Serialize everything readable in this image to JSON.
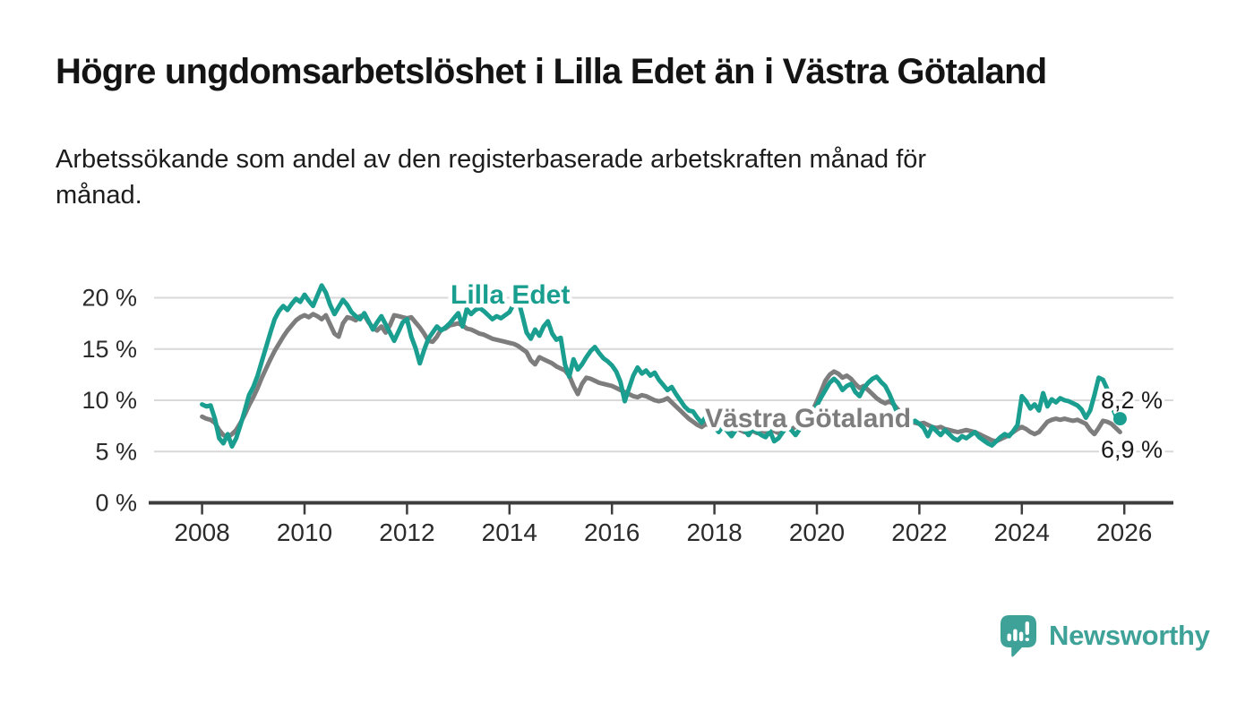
{
  "header": {
    "title": "Högre ungdomsarbetslöshet i Lilla Edet än i Västra Götaland",
    "subtitle": "Arbetssökande som andel av den registerbaserade arbetskraften månad för\nmånad."
  },
  "branding": {
    "logo_text": "Newsworthy",
    "logo_icon": "newsworthy-bubble-bar-chart-icon",
    "logo_color": "#3fa298"
  },
  "chart_data": {
    "type": "line",
    "title": "Högre ungdomsarbetslöshet i Lilla Edet än i Västra Götaland",
    "subtitle": "Arbetssökande som andel av den registerbaserade arbetskraften månad för månad.",
    "xlabel": "",
    "ylabel": "",
    "unit": "%",
    "frequency": "monthly",
    "x_start": "2008-01",
    "x_end": "2025-12",
    "ylim": [
      0,
      22.5
    ],
    "grid": "horizontal",
    "legend_position": "inline-labels",
    "colors": {
      "axis": "#3d3d3d",
      "gridline": "#d9d9d9",
      "tick_text": "#2b2b2b",
      "annotation_text": "#1a1a1a"
    },
    "y_ticks": [
      0,
      5,
      10,
      15,
      20
    ],
    "y_tick_labels": [
      "0 %",
      "5 %",
      "10 %",
      "15 %",
      "20 %"
    ],
    "x_ticks": [
      2008,
      2010,
      2012,
      2014,
      2016,
      2018,
      2020,
      2022,
      2024,
      2026
    ],
    "x_tick_labels": [
      "2008",
      "2010",
      "2012",
      "2014",
      "2016",
      "2018",
      "2020",
      "2022",
      "2024",
      "2026"
    ],
    "series": [
      {
        "name": "Lilla Edet",
        "slug": "lilla-edet",
        "color": "#1a9e90",
        "end_label": "8,2 %",
        "end_value": 8.2,
        "values": [
          9.6,
          9.4,
          9.5,
          8.2,
          6.3,
          5.8,
          6.7,
          5.5,
          6.3,
          7.6,
          9.0,
          10.5,
          11.3,
          12.4,
          13.8,
          15.2,
          16.6,
          17.9,
          18.7,
          19.2,
          18.8,
          19.4,
          19.9,
          19.6,
          20.3,
          19.7,
          19.2,
          20.2,
          21.2,
          20.5,
          19.3,
          18.4,
          19.1,
          19.8,
          19.3,
          18.6,
          18.2,
          17.9,
          18.5,
          17.7,
          16.9,
          17.6,
          18.2,
          17.4,
          16.6,
          15.8,
          16.7,
          17.6,
          17.9,
          16.2,
          15.1,
          13.6,
          14.9,
          16.0,
          16.6,
          17.2,
          16.8,
          17.1,
          17.5,
          18.0,
          18.5,
          17.2,
          18.9,
          18.4,
          18.8,
          19.0,
          18.7,
          18.3,
          17.9,
          18.2,
          18.0,
          18.3,
          18.6,
          19.4,
          19.9,
          18.3,
          16.6,
          16.0,
          16.9,
          16.3,
          17.2,
          17.7,
          16.5,
          15.9,
          16.1,
          13.5,
          12.3,
          14.0,
          13.0,
          13.5,
          14.2,
          14.8,
          15.2,
          14.6,
          14.1,
          13.8,
          13.4,
          12.8,
          11.8,
          9.9,
          11.2,
          12.4,
          13.2,
          12.6,
          12.9,
          12.4,
          12.7,
          12.0,
          11.5,
          11.0,
          11.3,
          10.6,
          10.0,
          9.4,
          9.0,
          8.9,
          8.3,
          7.8,
          8.4,
          7.7,
          7.4,
          6.9,
          7.5,
          7.0,
          6.5,
          7.1,
          7.6,
          7.1,
          6.6,
          7.2,
          6.9,
          6.6,
          6.4,
          7.0,
          6.0,
          6.3,
          6.9,
          7.4,
          7.1,
          6.6,
          7.2,
          7.8,
          8.2,
          8.7,
          9.5,
          10.3,
          11.0,
          11.7,
          12.1,
          11.7,
          11.0,
          11.4,
          11.6,
          10.8,
          10.4,
          11.2,
          11.7,
          12.1,
          12.3,
          11.8,
          11.4,
          10.6,
          9.6,
          8.6,
          8.1,
          8.0,
          7.8,
          8.0,
          7.7,
          7.3,
          6.5,
          7.4,
          7.0,
          6.6,
          7.1,
          6.7,
          6.3,
          6.1,
          6.5,
          6.3,
          6.6,
          6.9,
          6.4,
          6.1,
          5.8,
          5.6,
          6.0,
          6.4,
          6.7,
          6.5,
          7.0,
          7.6,
          10.4,
          9.9,
          9.2,
          9.6,
          9.0,
          10.7,
          9.4,
          10.1,
          9.8,
          10.2,
          10.0,
          9.9,
          9.7,
          9.5,
          9.1,
          8.3,
          9.0,
          10.5,
          12.2,
          12.0,
          11.1,
          9.5,
          8.5,
          8.2
        ]
      },
      {
        "name": "Västra Götaland",
        "slug": "vastra-gotaland",
        "color": "#7d7d7d",
        "end_label": "6,9 %",
        "end_value": 6.9,
        "values": [
          8.4,
          8.2,
          8.1,
          7.8,
          7.1,
          6.6,
          6.4,
          6.7,
          7.1,
          7.8,
          8.6,
          9.5,
          10.3,
          11.2,
          12.2,
          13.1,
          14.0,
          14.8,
          15.5,
          16.2,
          16.8,
          17.3,
          17.8,
          18.1,
          18.3,
          18.1,
          18.4,
          18.2,
          17.9,
          18.3,
          17.4,
          16.5,
          16.2,
          17.5,
          18.1,
          18.0,
          17.8,
          18.2,
          18.3,
          17.6,
          17.1,
          16.8,
          17.2,
          16.6,
          17.3,
          18.3,
          18.2,
          18.1,
          18.0,
          18.1,
          17.6,
          17.1,
          16.5,
          15.8,
          15.7,
          16.2,
          16.9,
          17.0,
          17.3,
          17.4,
          17.5,
          17.3,
          17.0,
          16.9,
          16.7,
          16.5,
          16.4,
          16.2,
          16.0,
          15.9,
          15.8,
          15.7,
          15.6,
          15.5,
          15.3,
          15.0,
          14.7,
          13.9,
          13.5,
          14.2,
          14.0,
          13.8,
          13.6,
          13.3,
          13.1,
          12.9,
          12.4,
          11.4,
          10.6,
          11.6,
          12.2,
          12.1,
          11.9,
          11.7,
          11.6,
          11.5,
          11.4,
          11.2,
          11.0,
          10.8,
          10.6,
          10.4,
          10.3,
          10.5,
          10.4,
          10.2,
          10.0,
          9.9,
          10.0,
          10.2,
          9.8,
          9.4,
          9.0,
          8.6,
          8.2,
          7.9,
          7.6,
          7.4,
          7.7,
          7.5,
          7.3,
          7.1,
          7.4,
          7.2,
          7.0,
          7.3,
          7.1,
          6.9,
          7.2,
          7.0,
          6.8,
          7.1,
          6.9,
          7.2,
          7.0,
          6.8,
          7.1,
          7.3,
          7.2,
          7.4,
          7.7,
          8.1,
          8.5,
          9.0,
          9.9,
          10.9,
          11.9,
          12.5,
          12.8,
          12.6,
          12.2,
          12.4,
          12.1,
          11.6,
          11.2,
          11.4,
          11.0,
          10.6,
          10.2,
          9.9,
          9.7,
          9.9,
          9.6,
          9.1,
          8.6,
          8.2,
          7.9,
          7.8,
          7.7,
          7.8,
          7.6,
          7.4,
          7.3,
          7.4,
          7.2,
          7.1,
          7.0,
          6.9,
          7.0,
          7.1,
          7.0,
          6.9,
          6.7,
          6.5,
          6.3,
          6.1,
          6.0,
          6.2,
          6.4,
          6.6,
          6.9,
          7.2,
          7.4,
          7.2,
          6.9,
          6.7,
          6.9,
          7.4,
          7.9,
          8.1,
          8.2,
          8.1,
          8.2,
          8.1,
          8.0,
          8.1,
          7.9,
          7.7,
          7.1,
          6.7,
          7.3,
          8.0,
          7.9,
          7.7,
          7.3,
          6.9
        ]
      }
    ]
  }
}
